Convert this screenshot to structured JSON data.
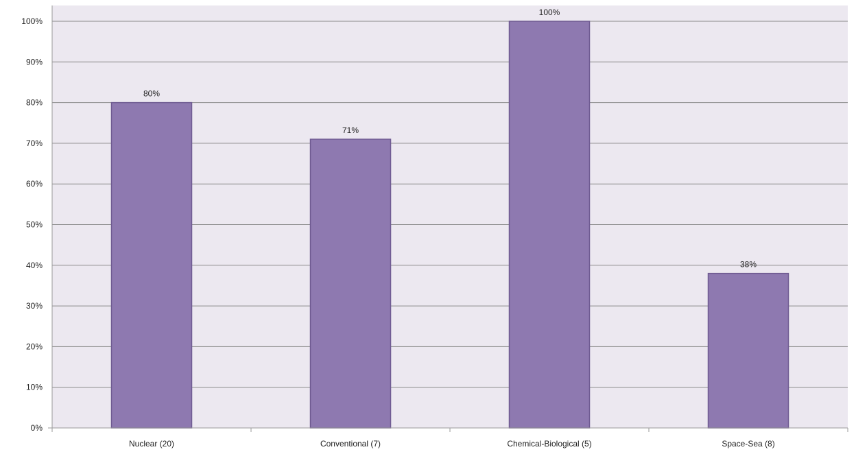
{
  "chart_data": {
    "type": "bar",
    "categories": [
      "Nuclear (20)",
      "Conventional (7)",
      "Chemical-Biological (5)",
      "Space-Sea (8)"
    ],
    "values": [
      80,
      71,
      100,
      38
    ],
    "data_labels": [
      "80%",
      "71%",
      "100%",
      "38%"
    ],
    "title": "",
    "xlabel": "",
    "ylabel": "",
    "ylim": [
      0,
      100
    ],
    "y_ticks": [
      0,
      10,
      20,
      30,
      40,
      50,
      60,
      70,
      80,
      90,
      100
    ],
    "y_tick_labels": [
      "0%",
      "10%",
      "20%",
      "30%",
      "40%",
      "50%",
      "60%",
      "70%",
      "80%",
      "90%",
      "100%"
    ],
    "grid": true,
    "legend": "none"
  },
  "colors": {
    "bar_fill": "#8e79b0",
    "bar_stroke": "#6e5a91",
    "plot_background": "#ece8f0",
    "gridline": "#8a8a8a",
    "axis": "#9a9a9a"
  }
}
